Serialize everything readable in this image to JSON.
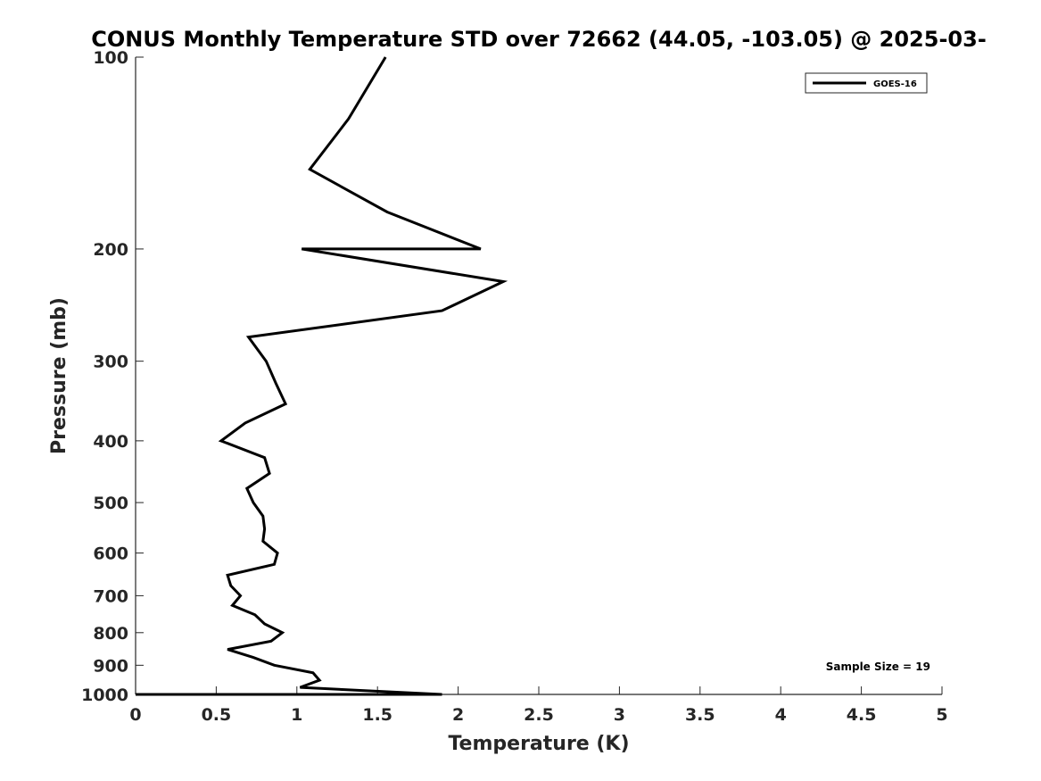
{
  "chart_data": {
    "type": "line",
    "title": "CONUS Monthly Temperature STD over 72662 (44.05, -103.05) @ 2025-03-",
    "xlabel": "Temperature (K)",
    "ylabel": "Pressure (mb)",
    "xlim": [
      0,
      5
    ],
    "ylim": [
      100,
      1000
    ],
    "y_scale": "log",
    "y_reversed": true,
    "grid": false,
    "legend_position": "top-right",
    "x_ticks": [
      0,
      0.5,
      1,
      1.5,
      2,
      2.5,
      3,
      3.5,
      4,
      4.5,
      5
    ],
    "x_tick_labels": [
      "0",
      "0.5",
      "1",
      "1.5",
      "2",
      "2.5",
      "3",
      "3.5",
      "4",
      "4.5",
      "5"
    ],
    "y_ticks": [
      100,
      200,
      300,
      400,
      500,
      600,
      700,
      800,
      900,
      1000
    ],
    "y_tick_labels": [
      "100",
      "200",
      "300",
      "400",
      "500",
      "600",
      "700",
      "800",
      "900",
      "1000"
    ],
    "series": [
      {
        "name": "GOES-16",
        "color": "#000000",
        "points": [
          {
            "x": 1.55,
            "y": 100
          },
          {
            "x": 1.32,
            "y": 125
          },
          {
            "x": 1.08,
            "y": 150
          },
          {
            "x": 1.56,
            "y": 175
          },
          {
            "x": 2.14,
            "y": 200
          },
          {
            "x": 1.03,
            "y": 200
          },
          {
            "x": 2.28,
            "y": 225
          },
          {
            "x": 1.9,
            "y": 250
          },
          {
            "x": 0.7,
            "y": 275
          },
          {
            "x": 0.81,
            "y": 300
          },
          {
            "x": 0.87,
            "y": 325
          },
          {
            "x": 0.93,
            "y": 350
          },
          {
            "x": 0.68,
            "y": 375
          },
          {
            "x": 0.53,
            "y": 400
          },
          {
            "x": 0.8,
            "y": 425
          },
          {
            "x": 0.83,
            "y": 450
          },
          {
            "x": 0.69,
            "y": 475
          },
          {
            "x": 0.73,
            "y": 500
          },
          {
            "x": 0.79,
            "y": 525
          },
          {
            "x": 0.8,
            "y": 550
          },
          {
            "x": 0.79,
            "y": 575
          },
          {
            "x": 0.88,
            "y": 600
          },
          {
            "x": 0.86,
            "y": 625
          },
          {
            "x": 0.57,
            "y": 650
          },
          {
            "x": 0.59,
            "y": 675
          },
          {
            "x": 0.65,
            "y": 700
          },
          {
            "x": 0.6,
            "y": 725
          },
          {
            "x": 0.74,
            "y": 750
          },
          {
            "x": 0.8,
            "y": 775
          },
          {
            "x": 0.91,
            "y": 800
          },
          {
            "x": 0.84,
            "y": 825
          },
          {
            "x": 0.57,
            "y": 850
          },
          {
            "x": 0.73,
            "y": 875
          },
          {
            "x": 0.86,
            "y": 900
          },
          {
            "x": 1.1,
            "y": 925
          },
          {
            "x": 1.14,
            "y": 950
          },
          {
            "x": 1.02,
            "y": 975
          },
          {
            "x": 1.9,
            "y": 1000
          },
          {
            "x": 0.0,
            "y": 1025
          }
        ]
      }
    ],
    "annotations": [
      "Sample Size = 19"
    ]
  }
}
